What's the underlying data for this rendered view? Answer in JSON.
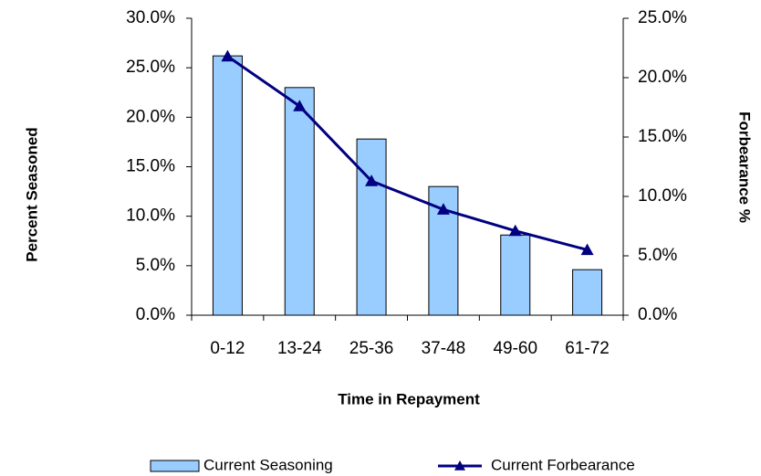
{
  "chart_data": {
    "type": "bar-line",
    "categories": [
      "0-12",
      "13-24",
      "25-36",
      "37-48",
      "49-60",
      "61-72"
    ],
    "series": [
      {
        "name": "Current Seasoning",
        "type": "bar",
        "color": "#99ccff",
        "values": [
          26.2,
          23.0,
          17.8,
          13.0,
          8.1,
          4.6
        ]
      },
      {
        "name": "Current Forbearance",
        "type": "line",
        "axis": "y2",
        "color": "#000080",
        "values": [
          21.8,
          17.6,
          11.3,
          8.9,
          7.1,
          5.5
        ]
      }
    ],
    "x_label": "Time in Repayment",
    "y_label": "Percent Seasoned",
    "y2_label": "Forbearance %",
    "ylim": [
      0,
      30
    ],
    "yticks": [
      {
        "value": 0,
        "label": "0.0%"
      },
      {
        "value": 5,
        "label": "5.0%"
      },
      {
        "value": 10,
        "label": "10.0%"
      },
      {
        "value": 15,
        "label": "15.0%"
      },
      {
        "value": 20,
        "label": "20.0%"
      },
      {
        "value": 25,
        "label": "25.0%"
      },
      {
        "value": 30,
        "label": "30.0%"
      }
    ],
    "y2lim": [
      0,
      25
    ],
    "y2ticks": [
      {
        "value": 0,
        "label": "0.0%"
      },
      {
        "value": 5,
        "label": "5.0%"
      },
      {
        "value": 10,
        "label": "10.0%"
      },
      {
        "value": 15,
        "label": "15.0%"
      },
      {
        "value": 20,
        "label": "20.0%"
      },
      {
        "value": 25,
        "label": "25.0%"
      }
    ],
    "legend": "bottom"
  }
}
